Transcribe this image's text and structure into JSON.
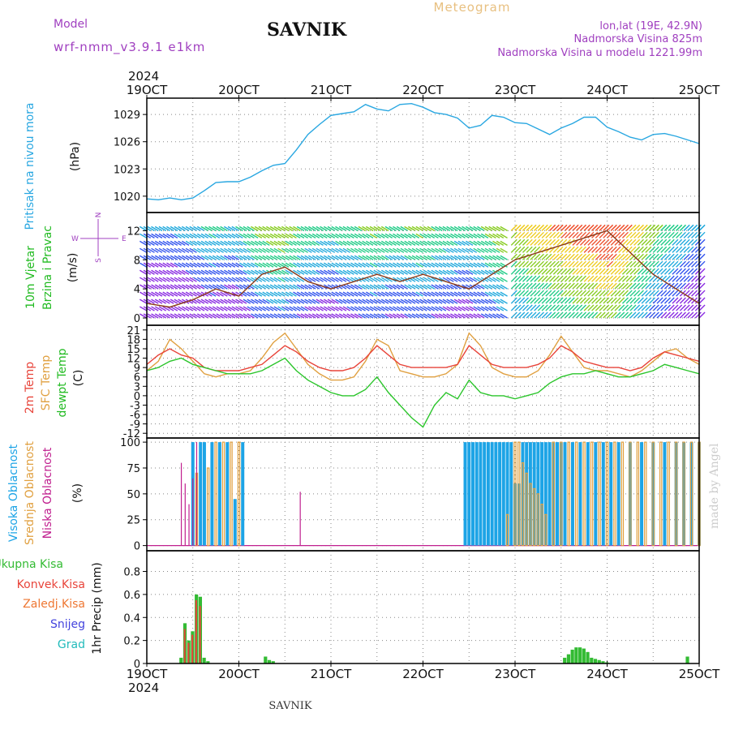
{
  "header": {
    "model_label": "Model",
    "model_name": "wrf-nmm_v3.9.1 e1km",
    "station": "SAVNIK",
    "product": "Meteogram",
    "coords": "lon,lat (19E, 42.9N)",
    "altitude": "Nadmorska Visina 825m",
    "model_altitude": "Nadmorska Visina u modelu 1221.99m",
    "year_top": "2024",
    "year_bottom": "2024",
    "footer_station": "SAVNIK",
    "watermark": "made by Angel"
  },
  "colors": {
    "pressure": "#29a7e1",
    "temp2m": "#e8443a",
    "sfc": "#e0a040",
    "dew": "#2bc52b",
    "high_cloud": "#1da4e6",
    "mid_cloud": "#e0a040",
    "low_cloud": "#c0208f",
    "total_precip": "#33bb33",
    "conv_precip": "#e8443a",
    "freezing": "#ee7733",
    "snow": "#4444dd",
    "hail": "#22bbbb"
  },
  "time_axis": {
    "day_labels": [
      "19OCT",
      "20OCT",
      "21OCT",
      "22OCT",
      "23OCT",
      "24OCT",
      "25OCT"
    ]
  },
  "panels": {
    "pressure": {
      "ylabel_main": "Pritisak na nivou mora",
      "ylabel_unit": "(hPa)"
    },
    "wind": {
      "ylabel_lines": [
        "10m Vjetar",
        "Brzina i Pravac"
      ],
      "ylabel_unit": "(m/s)",
      "compass_n": "N",
      "compass_s": "S",
      "compass_e": "E",
      "compass_w": "W"
    },
    "temp": {
      "ylabel_lines": [
        "2m Temp",
        "SFC Temp",
        "dewpt Temp"
      ],
      "ylabel_unit": "(C)"
    },
    "cloud": {
      "ylabel_lines": [
        "Visoka Oblacnost",
        "Srednja Oblacnost",
        "Niska Oblacnost"
      ],
      "ylabel_unit": "(%)"
    },
    "precip": {
      "legend": [
        "Ukupna Kisa",
        "Konvek.Kisa",
        "Zaledj.Kisa",
        "Snijeg",
        "Grad"
      ],
      "ylabel": "1hr Precip (mm)"
    }
  },
  "chart_data": [
    {
      "type": "line",
      "name": "pressure",
      "ylabel": "(hPa)",
      "ylim": [
        1018.2,
        1030.8
      ],
      "yticks": [
        1020,
        1023,
        1026,
        1029
      ],
      "x_unit": "hours from 19OCT 00:00",
      "x": [
        0,
        3,
        6,
        9,
        12,
        15,
        18,
        21,
        24,
        27,
        30,
        33,
        36,
        39,
        42,
        45,
        48,
        51,
        54,
        57,
        60,
        63,
        66,
        69,
        72,
        75,
        78,
        81,
        84,
        87,
        90,
        93,
        96,
        99,
        102,
        105,
        108,
        111,
        114,
        117,
        120,
        123,
        126,
        129,
        132,
        135,
        138,
        141,
        144
      ],
      "values": [
        1019.7,
        1019.6,
        1019.8,
        1019.6,
        1019.8,
        1020.6,
        1021.5,
        1021.6,
        1021.6,
        1022.1,
        1022.8,
        1023.4,
        1023.6,
        1025.1,
        1026.8,
        1027.9,
        1028.9,
        1029.1,
        1029.3,
        1030.1,
        1029.6,
        1029.4,
        1030.1,
        1030.2,
        1029.8,
        1029.2,
        1029.0,
        1028.6,
        1027.5,
        1027.8,
        1028.9,
        1028.7,
        1028.1,
        1028.0,
        1027.4,
        1026.8,
        1027.5,
        1028.0,
        1028.7,
        1028.7,
        1027.6,
        1027.1,
        1026.5,
        1026.2,
        1026.8,
        1026.9,
        1026.6,
        1026.2,
        1025.8
      ]
    },
    {
      "type": "line",
      "name": "wind-speed",
      "ylabel": "(m/s)",
      "ylim": [
        -1,
        14.5
      ],
      "yticks": [
        0,
        4,
        8,
        12
      ],
      "x_unit": "hours from 19OCT 00:00",
      "x": [
        0,
        6,
        12,
        18,
        24,
        30,
        36,
        42,
        48,
        54,
        60,
        66,
        72,
        78,
        84,
        90,
        96,
        102,
        108,
        114,
        120,
        126,
        132,
        138,
        144
      ],
      "series": [
        {
          "values": [
            2,
            1.5,
            2.5,
            4,
            3,
            6,
            7,
            5,
            4,
            5,
            6,
            5,
            6,
            5,
            4,
            6,
            8,
            9,
            10,
            11,
            12,
            9,
            6,
            4,
            2
          ]
        }
      ],
      "barb_speeds": [
        12,
        12,
        11,
        10,
        9,
        8,
        7,
        6,
        5,
        4,
        3,
        2,
        1,
        0
      ]
    },
    {
      "type": "line",
      "name": "temperature",
      "ylabel": "(C)",
      "ylim": [
        -13.5,
        22.5
      ],
      "yticks": [
        -12,
        -9,
        -6,
        -3,
        0,
        3,
        6,
        9,
        12,
        15,
        18,
        21
      ],
      "x_unit": "hours from 19OCT 00:00",
      "x": [
        0,
        3,
        6,
        9,
        12,
        15,
        18,
        21,
        24,
        27,
        30,
        33,
        36,
        39,
        42,
        45,
        48,
        51,
        54,
        57,
        60,
        63,
        66,
        69,
        72,
        75,
        78,
        81,
        84,
        87,
        90,
        93,
        96,
        99,
        102,
        105,
        108,
        111,
        114,
        117,
        120,
        123,
        126,
        129,
        132,
        135,
        138,
        141,
        144
      ],
      "series": [
        {
          "values": [
            10,
            13,
            15,
            13,
            12,
            9,
            8,
            8,
            8,
            9,
            10,
            13,
            16,
            14,
            11,
            9,
            8,
            8,
            9,
            12,
            16,
            13,
            10,
            9,
            9,
            9,
            9,
            10,
            16,
            13,
            10,
            9,
            9,
            9,
            10,
            12,
            16,
            14,
            11,
            10,
            9,
            9,
            8,
            9,
            12,
            14,
            13,
            12,
            11
          ]
        },
        {
          "values": [
            8,
            11,
            18,
            15,
            11,
            7,
            6,
            7,
            7,
            8,
            12,
            17,
            20,
            15,
            10,
            7,
            5,
            5,
            6,
            11,
            18,
            16,
            8,
            7,
            6,
            6,
            7,
            10,
            20,
            16,
            9,
            7,
            6,
            6,
            8,
            13,
            19,
            14,
            9,
            8,
            8,
            7,
            6,
            8,
            11,
            14,
            15,
            12,
            10
          ]
        },
        {
          "values": [
            8,
            9,
            11,
            12,
            10,
            9,
            8,
            7,
            7,
            7,
            8,
            10,
            12,
            8,
            5,
            3,
            1,
            0,
            0,
            2,
            6,
            1,
            -3,
            -7,
            -10,
            -3,
            1,
            -1,
            5,
            1,
            0,
            0,
            -1,
            0,
            1,
            4,
            6,
            7,
            7,
            8,
            7,
            6,
            6,
            7,
            8,
            10,
            9,
            8,
            7
          ]
        }
      ]
    },
    {
      "type": "bar",
      "name": "cloud-cover",
      "ylabel": "(%)",
      "ylim": [
        -5,
        104
      ],
      "yticks": [
        0,
        25,
        50,
        75,
        100
      ],
      "x_unit": "hours from 19OCT 00:00",
      "series": [
        {
          "x": [
            12,
            14,
            15,
            17,
            19,
            21,
            23,
            25,
            83,
            84,
            85,
            86,
            87,
            88,
            89,
            90,
            91,
            92,
            93,
            94,
            95,
            96,
            97,
            98,
            99,
            100,
            101,
            102,
            103,
            104,
            105,
            106,
            107,
            108,
            109,
            111,
            113,
            115,
            117,
            119,
            121,
            123,
            126,
            129,
            132,
            135,
            138,
            140,
            142,
            144
          ],
          "values": [
            100,
            100,
            100,
            100,
            100,
            100,
            45,
            100,
            100,
            100,
            100,
            100,
            100,
            100,
            100,
            100,
            100,
            100,
            100,
            100,
            100,
            60,
            60,
            100,
            100,
            100,
            100,
            100,
            100,
            100,
            100,
            100,
            100,
            100,
            100,
            100,
            100,
            100,
            100,
            100,
            100,
            100,
            100,
            100,
            100,
            100,
            100,
            100,
            100,
            100
          ]
        },
        {
          "x": [
            13,
            16,
            18,
            20,
            22,
            24,
            94,
            96,
            97,
            98,
            99,
            100,
            101,
            102,
            103,
            104,
            106,
            108,
            110,
            112,
            114,
            116,
            118,
            120,
            122,
            124,
            126,
            128,
            130,
            132,
            134,
            136,
            138,
            140,
            142,
            144
          ],
          "values": [
            70,
            75,
            100,
            100,
            100,
            100,
            30,
            100,
            100,
            80,
            70,
            60,
            55,
            50,
            40,
            30,
            100,
            100,
            100,
            100,
            100,
            100,
            100,
            100,
            100,
            100,
            100,
            100,
            100,
            100,
            100,
            100,
            100,
            100,
            100,
            100
          ]
        },
        {
          "x": [
            9,
            10,
            11,
            12,
            13,
            40
          ],
          "values": [
            80,
            60,
            40,
            65,
            100,
            52
          ]
        }
      ]
    },
    {
      "type": "bar",
      "name": "precipitation",
      "ylabel": "1hr Precip (mm)",
      "ylim": [
        0,
        0.98
      ],
      "yticks": [
        0,
        0.2,
        0.4,
        0.6,
        0.8
      ],
      "x_unit": "hours from 19OCT 00:00",
      "series": [
        {
          "x": [
            9,
            10,
            11,
            12,
            13,
            14,
            15,
            16,
            31,
            32,
            33,
            109,
            110,
            111,
            112,
            113,
            114,
            115,
            116,
            117,
            118,
            119,
            120,
            141
          ],
          "values": [
            0.05,
            0.35,
            0.2,
            0.28,
            0.6,
            0.58,
            0.05,
            0.02,
            0.06,
            0.03,
            0.02,
            0.05,
            0.08,
            0.12,
            0.14,
            0.14,
            0.13,
            0.1,
            0.05,
            0.04,
            0.03,
            0.02,
            0.01,
            0.06
          ]
        },
        {
          "x": [
            10,
            11,
            12,
            13,
            14
          ],
          "values": [
            0.3,
            0.18,
            0.25,
            0.55,
            0.5
          ]
        }
      ]
    }
  ]
}
